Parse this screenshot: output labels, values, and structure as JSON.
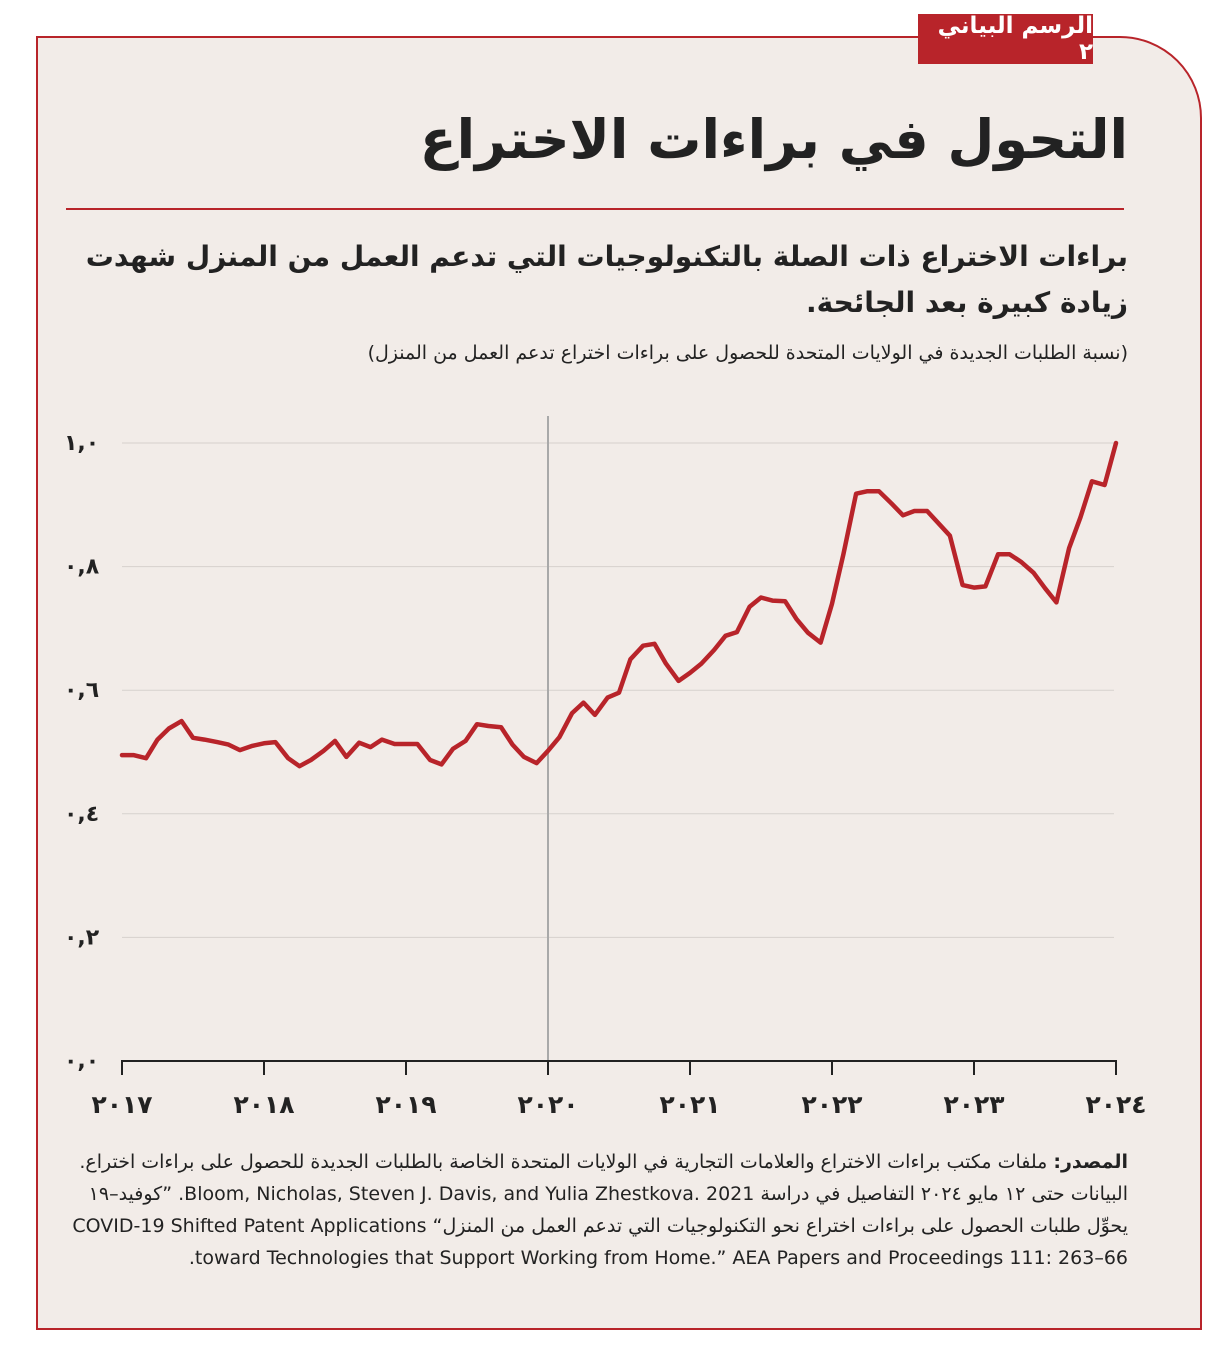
{
  "tag": "الرسم البياني ٢",
  "title": "التحول في براءات الاختراع",
  "subtitle": "براءات الاختراع ذات الصلة بالتكنولوجيات التي تدعم العمل من المنزل شهدت زيادة كبيرة بعد الجائحة.",
  "unit_note": "(نسبة الطلبات الجديدة في الولايات المتحدة للحصول على براءات اختراع تدعم العمل من المنزل)",
  "source": {
    "label": "المصدر:",
    "text": "ملفات مكتب براءات الاختراع والعلامات التجارية في الولايات المتحدة الخاصة بالطلبات الجديدة للحصول على براءات اختراع. البيانات حتى ١٢ مايو ٢٠٢٤ التفاصيل في دراسة Bloom, Nicholas, Steven J. Davis, and Yulia Zhestkova. 2021. ”كوفيد–١٩ يحوِّل طلبات الحصول على براءات اختراع نحو التكنولوجيات التي تدعم العمل من المنزل“ COVID-19 Shifted Patent Applications toward Technologies that Support Working from Home.” AEA Papers and Proceedings 111: 263–66."
  },
  "colors": {
    "accent": "#b8242a",
    "panel": "#f2ece8",
    "grid": "#d6d1cd",
    "marker": "#a9a9a9"
  },
  "chart_data": {
    "type": "line",
    "ylim": [
      0,
      1.0
    ],
    "xlim": [
      2017,
      2024
    ],
    "y_ticks": [
      0,
      0.2,
      0.4,
      0.6,
      0.8,
      1.0
    ],
    "y_tick_labels": [
      "٠,٠",
      "٠,٢",
      "٠,٤",
      "٠,٦",
      "٠,٨",
      "١,٠"
    ],
    "x_ticks": [
      2017,
      2018,
      2019,
      2020,
      2021,
      2022,
      2023,
      2024
    ],
    "x_tick_labels": [
      "٢٠١٧",
      "٢٠١٨",
      "٢٠١٩",
      "٢٠٢٠",
      "٢٠٢١",
      "٢٠٢٢",
      "٢٠٢٣",
      "٢٠٢٤"
    ],
    "vertical_marker": 2020,
    "grid": true,
    "series": [
      {
        "x": [
          2017.0,
          2017.08,
          2017.17,
          2017.25,
          2017.33,
          2017.42,
          2017.5,
          2017.58,
          2017.67,
          2017.75,
          2017.83,
          2017.92,
          2018.0,
          2018.08,
          2018.17,
          2018.25,
          2018.33,
          2018.42,
          2018.5,
          2018.58,
          2018.67,
          2018.75,
          2018.83,
          2018.92,
          2019.0,
          2019.08,
          2019.17,
          2019.25,
          2019.33,
          2019.42,
          2019.5,
          2019.58,
          2019.67,
          2019.75,
          2019.83,
          2019.92,
          2020.0,
          2020.08,
          2020.17,
          2020.25,
          2020.33,
          2020.42,
          2020.5,
          2020.58,
          2020.67,
          2020.75,
          2020.83,
          2020.92,
          2021.0,
          2021.08,
          2021.17,
          2021.25,
          2021.33,
          2021.42,
          2021.5,
          2021.58,
          2021.67,
          2021.75,
          2021.83,
          2021.92,
          2022.0,
          2022.08,
          2022.17,
          2022.25,
          2022.33,
          2022.42,
          2022.5,
          2022.58,
          2022.67,
          2022.75,
          2022.83,
          2022.92,
          2023.0,
          2023.08,
          2023.17,
          2023.25,
          2023.33,
          2023.42,
          2023.5,
          2023.58,
          2023.67,
          2023.75,
          2023.83,
          2023.92,
          2024.0
        ],
        "values": [
          0.495,
          0.495,
          0.49,
          0.52,
          0.538,
          0.55,
          0.523,
          0.52,
          0.516,
          0.512,
          0.503,
          0.51,
          0.514,
          0.516,
          0.49,
          0.477,
          0.487,
          0.502,
          0.518,
          0.492,
          0.515,
          0.508,
          0.52,
          0.513,
          0.513,
          0.513,
          0.487,
          0.48,
          0.505,
          0.518,
          0.545,
          0.542,
          0.54,
          0.512,
          0.492,
          0.482,
          0.502,
          0.524,
          0.563,
          0.58,
          0.56,
          0.588,
          0.596,
          0.65,
          0.672,
          0.675,
          0.643,
          0.615,
          0.628,
          0.643,
          0.665,
          0.688,
          0.694,
          0.735,
          0.75,
          0.745,
          0.744,
          0.715,
          0.693,
          0.677,
          0.74,
          0.82,
          0.918,
          0.922,
          0.922,
          0.902,
          0.883,
          0.89,
          0.89,
          0.87,
          0.85,
          0.77,
          0.766,
          0.768,
          0.82,
          0.82,
          0.808,
          0.79,
          0.765,
          0.742,
          0.83,
          0.88,
          0.938,
          0.932,
          1.0
        ]
      }
    ]
  }
}
